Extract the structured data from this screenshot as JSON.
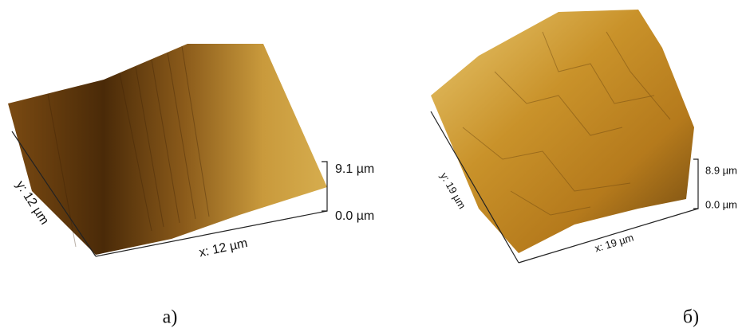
{
  "panels": [
    {
      "label": "а)",
      "x_axis": "x: 12 µm",
      "y_axis": "y: 12 µm",
      "z_top": "9.1 µm",
      "z_bottom": "0.0 µm"
    },
    {
      "label": "б)",
      "x_axis": "x: 19 µm",
      "y_axis": "y: 19 µm",
      "z_top": "8.9 µm",
      "z_bottom": "0.0 µm"
    }
  ]
}
